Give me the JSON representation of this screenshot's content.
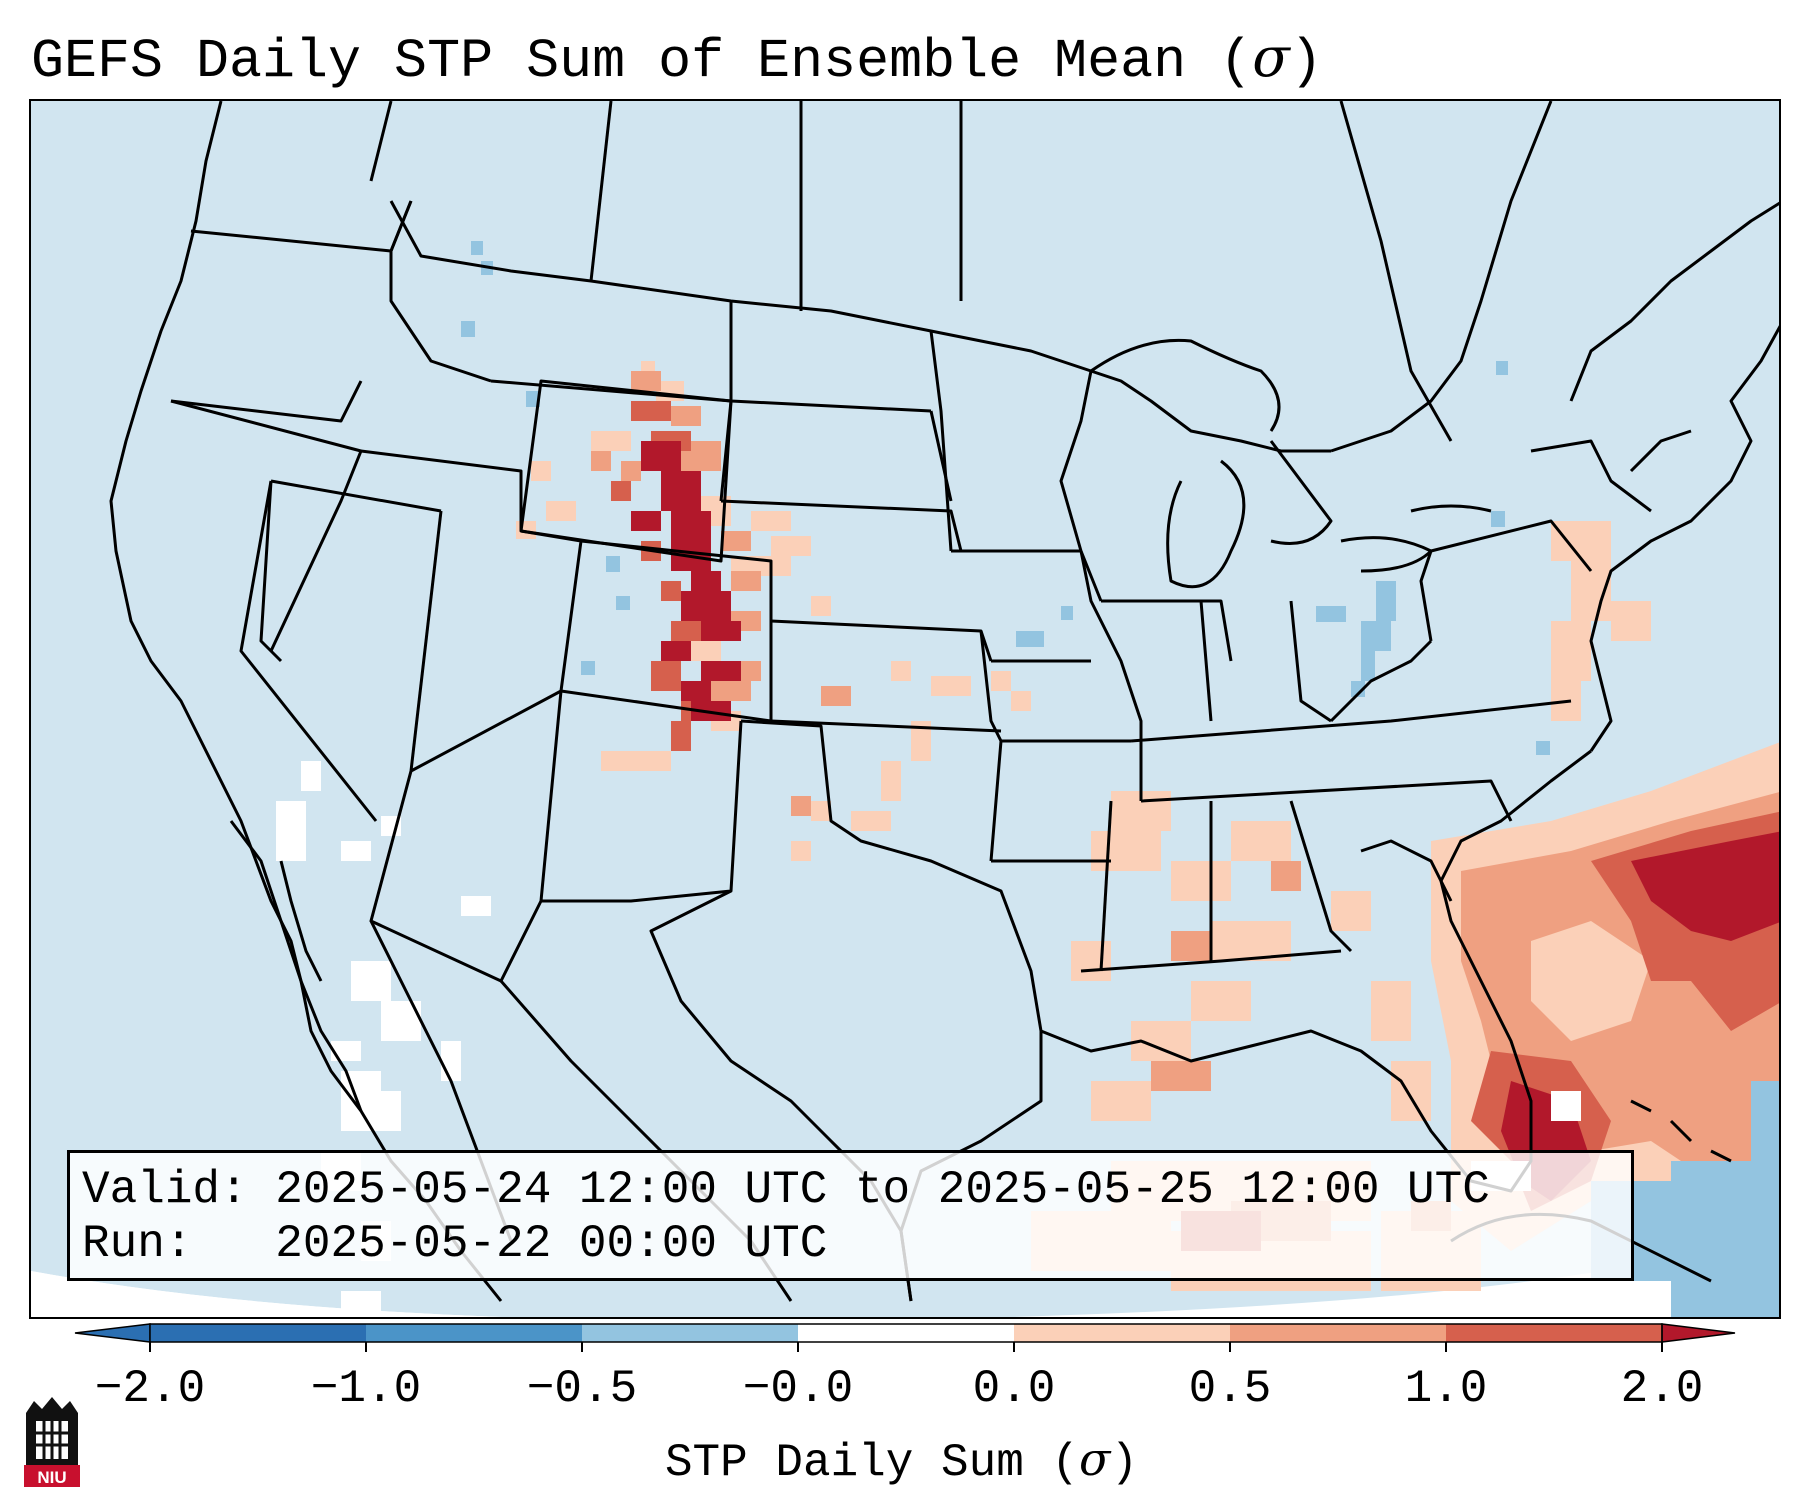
{
  "title": {
    "text": "GEFS Daily STP Sum of Ensemble Mean (",
    "symbol": "σ",
    "close": ")"
  },
  "info_box": {
    "valid_label": "Valid:",
    "valid_value": "2025-05-24 12:00 UTC to 2025-05-25 12:00 UTC",
    "run_label": "Run:",
    "run_value": "2025-05-22 00:00 UTC"
  },
  "colorbar": {
    "ticks": [
      "−2.0",
      "−1.0",
      "−0.5",
      "−0.0",
      "0.0",
      "0.5",
      "1.0",
      "2.0"
    ],
    "colors": [
      "#2b6fb2",
      "#4b94c8",
      "#93c4e0",
      "#d1e5f0",
      "#ffffff",
      "#fbd0b8",
      "#efa081",
      "#d6604d",
      "#b2182b"
    ],
    "label_text": "STP Daily Sum (",
    "label_symbol": "σ",
    "label_close": ")"
  },
  "logo": {
    "text": "NIU"
  },
  "colors": {
    "ocean": "#d1e5f0",
    "land": "#d1e5f0",
    "border": "#000000"
  }
}
